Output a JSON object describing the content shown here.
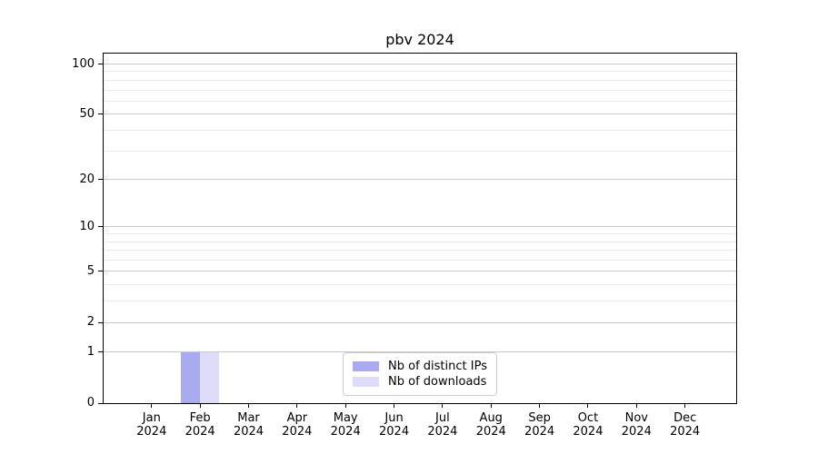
{
  "chart_data": {
    "type": "bar",
    "title": "pbv 2024",
    "categories": [
      "Jan",
      "Feb",
      "Mar",
      "Apr",
      "May",
      "Jun",
      "Jul",
      "Aug",
      "Sep",
      "Oct",
      "Nov",
      "Dec"
    ],
    "year_label": "2024",
    "series": [
      {
        "name": "Nb of distinct IPs",
        "color": "#aaaaee",
        "values": [
          0,
          1,
          0,
          0,
          0,
          0,
          0,
          0,
          0,
          0,
          0,
          0
        ]
      },
      {
        "name": "Nb of downloads",
        "color": "#ddddfa",
        "values": [
          0,
          1,
          0,
          0,
          0,
          0,
          0,
          0,
          0,
          0,
          0,
          0
        ]
      }
    ],
    "y_axis": {
      "scale": "log1p",
      "major_ticks": [
        0,
        1,
        2,
        5,
        10,
        20,
        50,
        100
      ],
      "minor_ticks": [
        3,
        4,
        6,
        7,
        8,
        9,
        30,
        40,
        60,
        70,
        80,
        90
      ],
      "ymax": 100
    },
    "legend": {
      "position": "lower center",
      "entries": [
        "Nb of distinct IPs",
        "Nb of downloads"
      ]
    },
    "colors": {
      "major_grid": "#c9c9c9",
      "minor_grid": "#e9e9e9",
      "axis": "#000000",
      "background": "#ffffff"
    }
  }
}
